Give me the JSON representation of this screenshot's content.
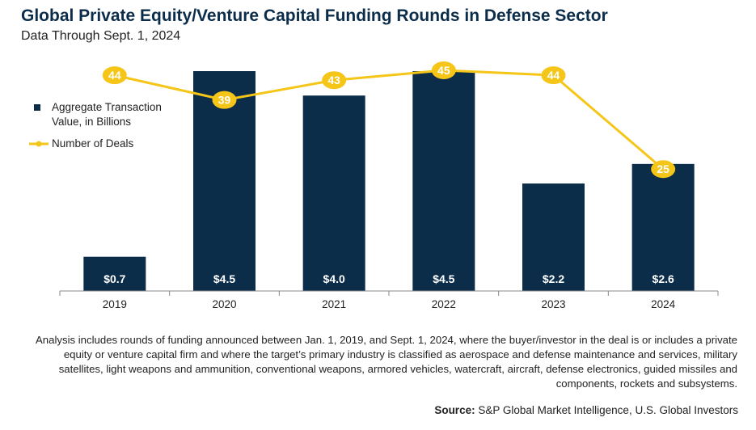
{
  "header": {
    "title": "Global Private Equity/Venture Capital Funding Rounds in Defense Sector",
    "subtitle": "Data Through Sept. 1, 2024"
  },
  "chart_data": {
    "type": "bar",
    "categories": [
      "2019",
      "2020",
      "2021",
      "2022",
      "2023",
      "2024"
    ],
    "series": [
      {
        "name": "Aggregate Transaction Value, in Billions",
        "type": "bar",
        "values": [
          0.7,
          4.5,
          4.0,
          4.5,
          2.2,
          2.6
        ],
        "labels": [
          "$0.7",
          "$4.5",
          "$4.0",
          "$4.5",
          "$2.2",
          "$2.6"
        ],
        "color": "#0b2d4a",
        "ylim": [
          0,
          4.5
        ]
      },
      {
        "name": "Number of Deals",
        "type": "line",
        "values": [
          44,
          39,
          43,
          45,
          44,
          25
        ],
        "labels": [
          "44",
          "39",
          "43",
          "45",
          "44",
          "25"
        ],
        "color": "#f5c518",
        "ylim": [
          0,
          45
        ]
      }
    ],
    "legend": "left"
  },
  "legend": {
    "bar_label_line1": "Aggregate Transaction",
    "bar_label_line2": "Value, in Billions",
    "line_label": "Number of Deals"
  },
  "footnote": "Analysis includes rounds of funding announced between Jan. 1, 2019, and Sept. 1, 2024, where the buyer/investor in the deal is or includes a private equity or venture capital firm and where the target’s primary industry is classified as aerospace and defense maintenance and services, military satellites, light weapons and ammunition, conventional weapons, armored vehicles, watercraft, aircraft, defense electronics, guided missiles and components, rockets and subsystems.",
  "source": {
    "label": "Source:",
    "text": "S&P Global Market Intelligence, U.S. Global Investors"
  }
}
